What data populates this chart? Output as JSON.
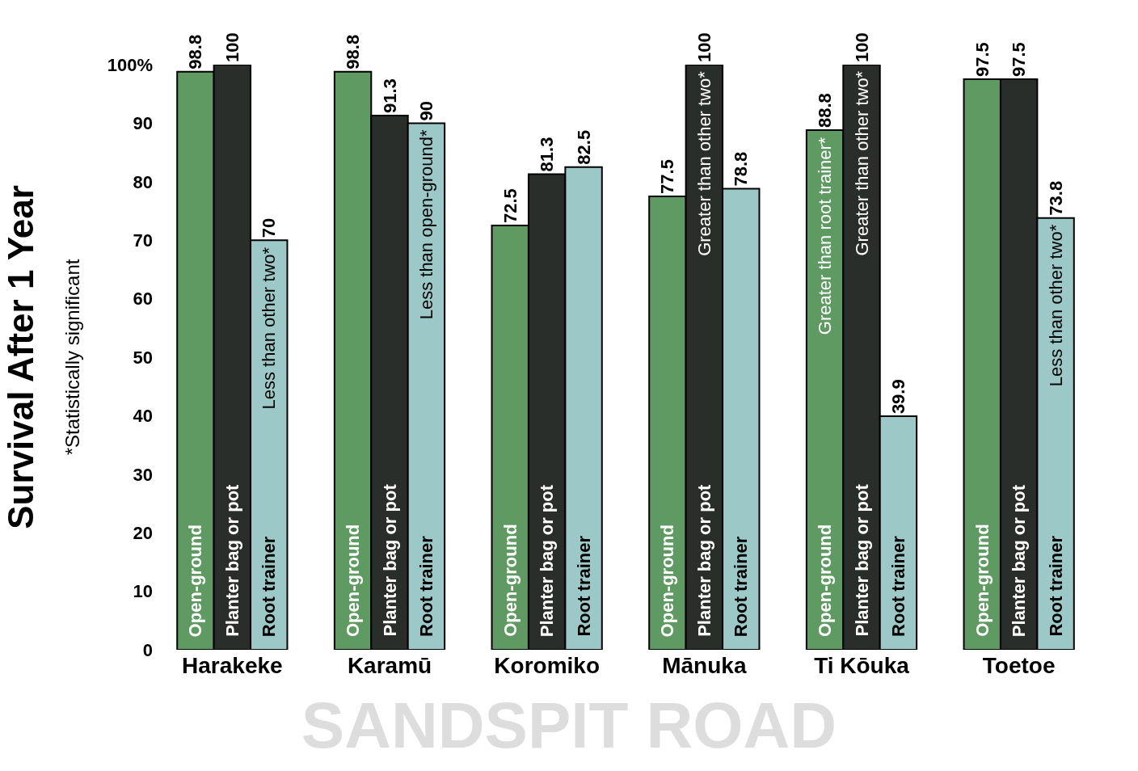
{
  "chart_data": {
    "type": "bar",
    "title": "SANDSPIT ROAD",
    "ylabel": "Survival After 1 Year",
    "subtitle": "*Statistically significant",
    "categories": [
      "Harakeke",
      "Karamū",
      "Koromiko",
      "Mānuka",
      "Ti Kōuka",
      "Toetoe"
    ],
    "series": [
      {
        "name": "Open-ground",
        "color": "#5e9a62",
        "values": [
          98.8,
          98.8,
          72.5,
          77.5,
          88.8,
          97.5
        ]
      },
      {
        "name": "Planter bag or pot",
        "color": "#2a2e2a",
        "values": [
          100,
          91.3,
          81.3,
          100,
          100,
          97.5
        ]
      },
      {
        "name": "Root trainer",
        "color": "#9dc8c8",
        "values": [
          70,
          90,
          82.5,
          78.8,
          39.9,
          73.8
        ]
      }
    ],
    "ylim": [
      0,
      100
    ],
    "yticks": [
      0,
      10,
      20,
      30,
      40,
      50,
      60,
      70,
      80,
      90,
      {
        "value": 100,
        "label": "100%"
      }
    ],
    "data_labels": true,
    "legend": false,
    "annotations": [
      "Less than other two*",
      "Less than open-ground*",
      "Greater than other two*",
      "Greater than root trainer*",
      "Greater than other two*",
      "Less than other two*"
    ]
  }
}
